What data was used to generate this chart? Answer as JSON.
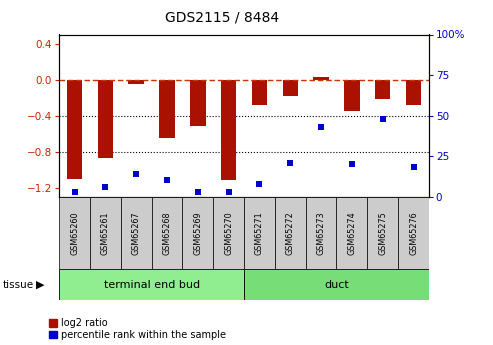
{
  "title": "GDS2115 / 8484",
  "samples": [
    "GSM65260",
    "GSM65261",
    "GSM65267",
    "GSM65268",
    "GSM65269",
    "GSM65270",
    "GSM65271",
    "GSM65272",
    "GSM65273",
    "GSM65274",
    "GSM65275",
    "GSM65276"
  ],
  "log2_ratio": [
    -1.1,
    -0.87,
    -0.05,
    -0.65,
    -0.52,
    -1.12,
    -0.28,
    -0.18,
    0.03,
    -0.35,
    -0.22,
    -0.28
  ],
  "percentile": [
    3,
    6,
    14,
    10,
    3,
    3,
    8,
    21,
    43,
    20,
    48,
    18
  ],
  "tissue_groups": [
    {
      "label": "terminal end bud",
      "start": 0,
      "end": 6,
      "color": "#90ee90"
    },
    {
      "label": "duct",
      "start": 6,
      "end": 12,
      "color": "#77dd77"
    }
  ],
  "ylim_left": [
    -1.3,
    0.5
  ],
  "ylim_right": [
    0,
    100
  ],
  "bar_color": "#aa1100",
  "dot_color": "#0000cc",
  "grid_color": "#000000",
  "dashed_color": "#cc3300",
  "tick_label_color_left": "#cc2200",
  "tick_label_color_right": "#0000cc",
  "yticks_left": [
    0.4,
    0.0,
    -0.4,
    -0.8,
    -1.2
  ],
  "yticks_right": [
    100,
    75,
    50,
    25,
    0
  ],
  "legend_items": [
    {
      "label": "log2 ratio",
      "color": "#aa1100"
    },
    {
      "label": "percentile rank within the sample",
      "color": "#0000cc"
    }
  ],
  "sample_box_color": "#cccccc",
  "bar_width": 0.5
}
